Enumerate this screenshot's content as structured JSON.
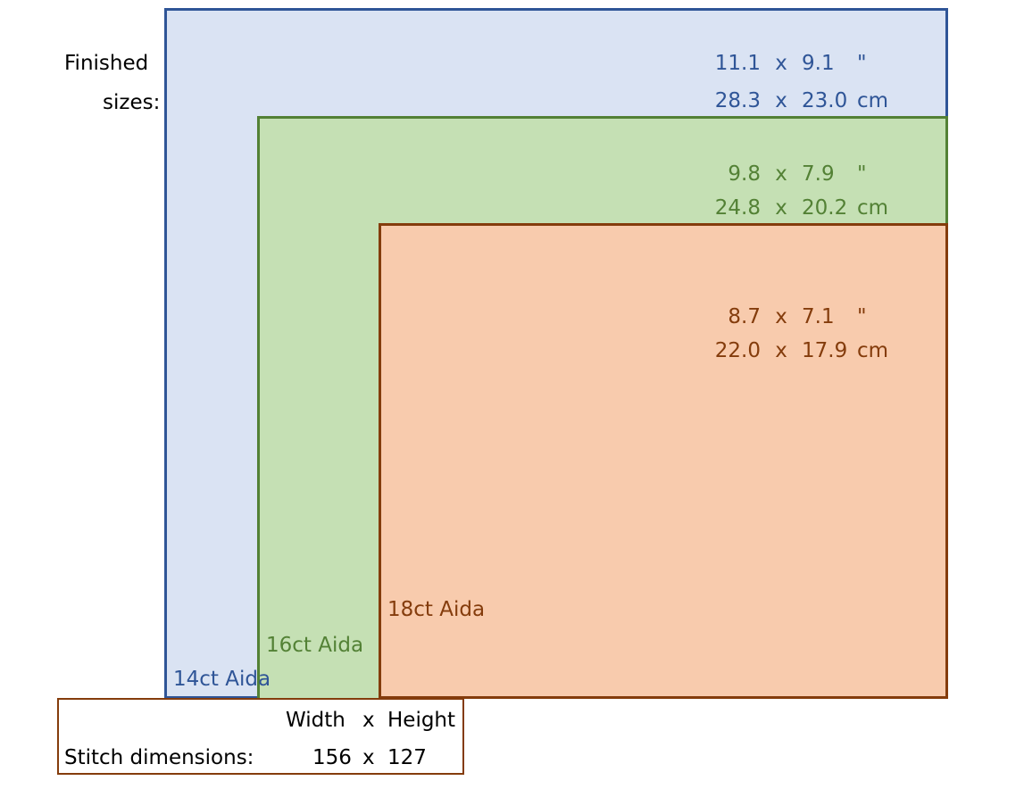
{
  "finished_label_line1": "Finished",
  "finished_label_line2": "sizes:",
  "colors": {
    "aida14": "#2f5597",
    "aida16": "#538135",
    "aida18": "#843c0c"
  },
  "aida14": {
    "label": "14ct Aida",
    "in_w": "11.1",
    "in_h": "9.1",
    "in_unit": "\"",
    "cm_w": "28.3",
    "cm_h": "23.0",
    "cm_unit": "cm"
  },
  "aida16": {
    "label": "16ct Aida",
    "in_w": "9.8",
    "in_h": "7.9",
    "in_unit": "\"",
    "cm_w": "24.8",
    "cm_h": "20.2",
    "cm_unit": "cm"
  },
  "aida18": {
    "label": "18ct Aida",
    "in_w": "8.7",
    "in_h": "7.1",
    "in_unit": "\"",
    "cm_w": "22.0",
    "cm_h": "17.9",
    "cm_unit": "cm"
  },
  "sep": "x",
  "stitch": {
    "header_w": "Width",
    "header_x": "x",
    "header_h": "Height",
    "label": "Stitch dimensions:",
    "w": "156",
    "x": "x",
    "h": "127"
  }
}
